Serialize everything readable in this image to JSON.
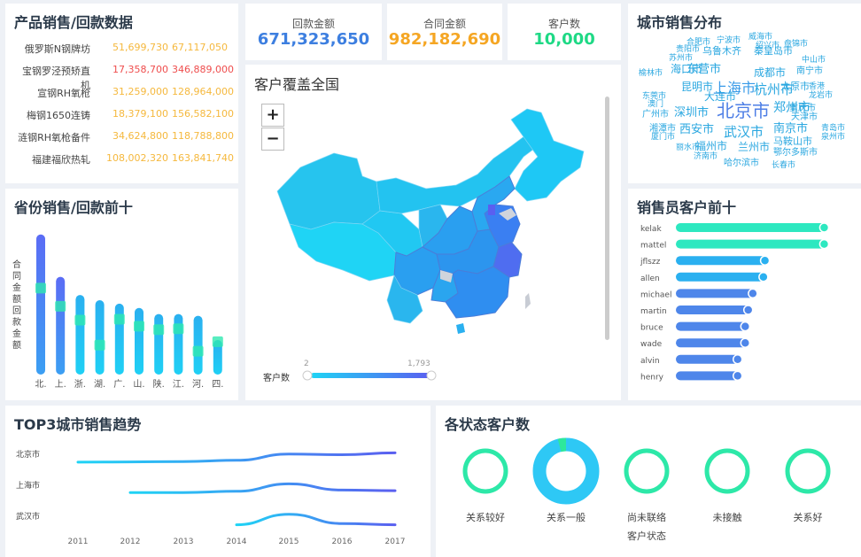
{
  "product_panel": {
    "title": "产品销售/回款数据",
    "rows": [
      {
        "name": "俄罗斯N钢牌坊",
        "v1": "51,699,730",
        "v2": "67,117,050",
        "c1": "#f5b83d",
        "c2": "#f5b83d"
      },
      {
        "name": "宝钢罗泾预矫直机",
        "v1": "17,358,700",
        "v2": "346,889,000",
        "c1": "#ef4d4d",
        "c2": "#ef4d4d"
      },
      {
        "name": "宣钢RH氧枪",
        "v1": "31,259,000",
        "v2": "128,964,000",
        "c1": "#f5b83d",
        "c2": "#f5b83d"
      },
      {
        "name": "梅钢1650连铸",
        "v1": "18,379,100",
        "v2": "156,582,100",
        "c1": "#f5b83d",
        "c2": "#f5b83d"
      },
      {
        "name": "涟钢RH氧枪备件",
        "v1": "34,624,800",
        "v2": "118,788,800",
        "c1": "#f5b83d",
        "c2": "#f5b83d"
      },
      {
        "name": "福建福欣热轧",
        "v1": "108,002,320",
        "v2": "163,841,740",
        "c1": "#f5b83d",
        "c2": "#f5b83d"
      }
    ]
  },
  "kpis": [
    {
      "label": "回款金额",
      "value": "671,323,650",
      "color": "#3d7fe0"
    },
    {
      "label": "合同金额",
      "value": "982,182,690",
      "color": "#f5a623"
    },
    {
      "label": "客户数",
      "value": "10,000",
      "color": "#1ed985"
    }
  ],
  "map_panel": {
    "title": "客户覆盖全国",
    "zoom_in": "+",
    "zoom_out": "−",
    "legend_label": "客户数",
    "legend_min": "2",
    "legend_max": "1,793"
  },
  "cloud_panel": {
    "title": "城市销售分布",
    "words": [
      {
        "t": "北京市",
        "s": 20,
        "c": "#4e7fe6"
      },
      {
        "t": "上海市",
        "s": 16,
        "c": "#3a9be8"
      },
      {
        "t": "杭州市",
        "s": 15,
        "c": "#2aa7e0"
      },
      {
        "t": "武汉市",
        "s": 15,
        "c": "#2aa7e0"
      },
      {
        "t": "郑州市",
        "s": 14,
        "c": "#2aa7e0"
      },
      {
        "t": "深圳市",
        "s": 13,
        "c": "#2aa7e0"
      },
      {
        "t": "南京市",
        "s": 13,
        "c": "#2aa7e0"
      },
      {
        "t": "西安市",
        "s": 13,
        "c": "#2aa7e0"
      },
      {
        "t": "东营市",
        "s": 13,
        "c": "#2aa7e0"
      },
      {
        "t": "海口市",
        "s": 12,
        "c": "#2aa7e0"
      },
      {
        "t": "成都市",
        "s": 12,
        "c": "#2aa7e0"
      },
      {
        "t": "大连市",
        "s": 12,
        "c": "#2aa7e0"
      },
      {
        "t": "福州市",
        "s": 12,
        "c": "#2aa7e0"
      },
      {
        "t": "兰州市",
        "s": 12,
        "c": "#2aa7e0"
      },
      {
        "t": "昆明市",
        "s": 12,
        "c": "#2aa7e0"
      },
      {
        "t": "乌鲁木齐",
        "s": 11,
        "c": "#2aa7e0"
      },
      {
        "t": "秦皇岛市",
        "s": 11,
        "c": "#2aa7e0"
      },
      {
        "t": "马鞍山市",
        "s": 11,
        "c": "#2aa7e0"
      },
      {
        "t": "太原市",
        "s": 11,
        "c": "#2aa7e0"
      },
      {
        "t": "南宁市",
        "s": 10,
        "c": "#2aa7e0"
      },
      {
        "t": "合肥市",
        "s": 9,
        "c": "#2aa7e0"
      },
      {
        "t": "宁波市",
        "s": 9,
        "c": "#2aa7e0"
      },
      {
        "t": "威海市",
        "s": 9,
        "c": "#2aa7e0"
      },
      {
        "t": "绍兴市",
        "s": 9,
        "c": "#2aa7e0"
      },
      {
        "t": "盘锦市",
        "s": 9,
        "c": "#2aa7e0"
      },
      {
        "t": "贵阳市",
        "s": 9,
        "c": "#2aa7e0"
      },
      {
        "t": "苏州市",
        "s": 9,
        "c": "#2aa7e0"
      },
      {
        "t": "中山市",
        "s": 9,
        "c": "#2aa7e0"
      },
      {
        "t": "榆林市",
        "s": 9,
        "c": "#2aa7e0"
      },
      {
        "t": "香港",
        "s": 9,
        "c": "#2aa7e0"
      },
      {
        "t": "龙岩市",
        "s": 9,
        "c": "#2aa7e0"
      },
      {
        "t": "东莞市",
        "s": 9,
        "c": "#2aa7e0"
      },
      {
        "t": "澳门",
        "s": 9,
        "c": "#2aa7e0"
      },
      {
        "t": "广州市",
        "s": 10,
        "c": "#2aa7e0"
      },
      {
        "t": "重庆市",
        "s": 10,
        "c": "#2aa7e0"
      },
      {
        "t": "天津市",
        "s": 10,
        "c": "#2aa7e0"
      },
      {
        "t": "湘潭市",
        "s": 10,
        "c": "#2aa7e0"
      },
      {
        "t": "厦门市",
        "s": 9,
        "c": "#2aa7e0"
      },
      {
        "t": "青岛市",
        "s": 9,
        "c": "#2aa7e0"
      },
      {
        "t": "泉州市",
        "s": 9,
        "c": "#2aa7e0"
      },
      {
        "t": "丽水市",
        "s": 9,
        "c": "#2aa7e0"
      },
      {
        "t": "济南市",
        "s": 9,
        "c": "#2aa7e0"
      },
      {
        "t": "鄂尔多斯市",
        "s": 10,
        "c": "#2aa7e0"
      },
      {
        "t": "哈尔滨市",
        "s": 10,
        "c": "#2aa7e0"
      },
      {
        "t": "长春市",
        "s": 9,
        "c": "#2aa7e0"
      }
    ]
  },
  "province_panel": {
    "title": "省份销售/回款前十",
    "axis_label": "合同金额回款金额"
  },
  "sales_panel": {
    "title": "销售员客户前十"
  },
  "trend_panel": {
    "title": "TOP3城市销售趋势"
  },
  "status_panel": {
    "title": "各状态客户数",
    "xlabel": "客户状态"
  },
  "chart_data": [
    {
      "type": "bar",
      "categories": [
        "北.",
        "上.",
        "浙.",
        "湖.",
        "广.",
        "山.",
        "陕.",
        "江.",
        "河.",
        "四."
      ],
      "series": [
        {
          "values": [
            162,
            113,
            92,
            86,
            82,
            77,
            70,
            70,
            68,
            40
          ]
        },
        {
          "values": [
            100,
            79,
            63,
            34,
            64,
            56,
            52,
            53,
            27,
            38
          ]
        }
      ],
      "ylim": [
        0,
        170
      ],
      "colors": [
        "#5b6cf5",
        "#2ab0f0",
        "#1fd0f5"
      ]
    },
    {
      "type": "bar",
      "orientation": "horizontal",
      "categories": [
        "kelak",
        "mattel",
        "jflszz",
        "allen",
        "michael",
        "martin",
        "bruce",
        "wade",
        "alvin",
        "henry"
      ],
      "values": [
        100,
        100,
        61,
        60,
        53,
        50,
        48,
        48,
        43,
        43
      ],
      "xlim": [
        0,
        105
      ]
    },
    {
      "type": "line",
      "x": [
        "2011",
        "2012",
        "2013",
        "2014",
        "2015",
        "2016",
        "2017"
      ],
      "series": [
        {
          "name": "北京市",
          "values": [
            0.15,
            0.17,
            0.2,
            0.3,
            0.8,
            0.75,
            0.9
          ]
        },
        {
          "name": "上海市",
          "values": [
            null,
            0.2,
            0.2,
            0.3,
            0.9,
            0.4,
            0.35
          ]
        },
        {
          "name": "武汉市",
          "values": [
            null,
            null,
            null,
            0.1,
            0.95,
            0.2,
            0.1
          ]
        }
      ]
    },
    {
      "type": "pie",
      "categories": [
        "关系较好",
        "关系一般",
        "尚未联络",
        "未接触",
        "关系好"
      ],
      "values": [
        0,
        96,
        0,
        0,
        0
      ]
    }
  ]
}
